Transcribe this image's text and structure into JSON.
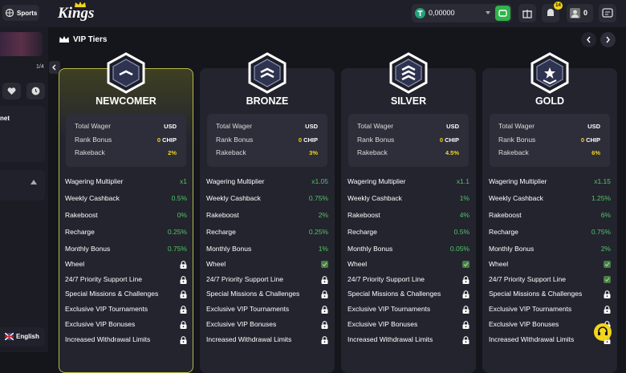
{
  "top_bar": {
    "sports_button": "Sports",
    "logo": "Kings",
    "balance": "0,00000",
    "notification_count": "14",
    "avatar_count": "0"
  },
  "sidebar": {
    "slider_counter": "1/4",
    "section_label": "net",
    "language": "English"
  },
  "section_title": "VIP Tiers",
  "tiers": [
    {
      "name": "NEWCOMER",
      "summary": [
        {
          "label": "Total Wager",
          "value": "USD"
        },
        {
          "label": "Rank Bonus",
          "value": "0",
          "unit": "CHIP"
        },
        {
          "label": "Rakeback",
          "value": "2%"
        }
      ],
      "rows": [
        {
          "label": "Wagering Multiplier",
          "value": "x1"
        },
        {
          "label": "Weekly Cashback",
          "value": "0.5%"
        },
        {
          "label": "Rakeboost",
          "value": "0%"
        },
        {
          "label": "Recharge",
          "value": "0.25%"
        },
        {
          "label": "Monthly Bonus",
          "value": "0.75%"
        }
      ],
      "perks": [
        {
          "label": "Wheel",
          "unlocked": false
        },
        {
          "label": "24/7 Priority Support Line",
          "unlocked": false
        },
        {
          "label": "Special Missions & Challenges",
          "unlocked": false
        },
        {
          "label": "Exclusive VIP Tournaments",
          "unlocked": false
        },
        {
          "label": "Exclusive VIP Bonuses",
          "unlocked": false
        },
        {
          "label": "Increased Withdrawal Limits",
          "unlocked": false
        }
      ]
    },
    {
      "name": "BRONZE",
      "summary": [
        {
          "label": "Total Wager",
          "value": "USD"
        },
        {
          "label": "Rank Bonus",
          "value": "0",
          "unit": "CHIP"
        },
        {
          "label": "Rakeback",
          "value": "3%"
        }
      ],
      "rows": [
        {
          "label": "Wagering Multiplier",
          "value": "x1.05"
        },
        {
          "label": "Weekly Cashback",
          "value": "0.75%"
        },
        {
          "label": "Rakeboost",
          "value": "2%"
        },
        {
          "label": "Recharge",
          "value": "0.25%"
        },
        {
          "label": "Monthly Bonus",
          "value": "1%"
        }
      ],
      "perks": [
        {
          "label": "Wheel",
          "unlocked": true
        },
        {
          "label": "24/7 Priority Support Line",
          "unlocked": false
        },
        {
          "label": "Special Missions & Challenges",
          "unlocked": false
        },
        {
          "label": "Exclusive VIP Tournaments",
          "unlocked": false
        },
        {
          "label": "Exclusive VIP Bonuses",
          "unlocked": false
        },
        {
          "label": "Increased Withdrawal Limits",
          "unlocked": false
        }
      ]
    },
    {
      "name": "SILVER",
      "summary": [
        {
          "label": "Total Wager",
          "value": "USD"
        },
        {
          "label": "Rank Bonus",
          "value": "0",
          "unit": "CHIP"
        },
        {
          "label": "Rakeback",
          "value": "4.5%"
        }
      ],
      "rows": [
        {
          "label": "Wagering Multiplier",
          "value": "x1.1"
        },
        {
          "label": "Weekly Cashback",
          "value": "1%"
        },
        {
          "label": "Rakeboost",
          "value": "4%"
        },
        {
          "label": "Recharge",
          "value": "0.5%"
        },
        {
          "label": "Monthly Bonus",
          "value": "0.05%"
        }
      ],
      "perks": [
        {
          "label": "Wheel",
          "unlocked": true
        },
        {
          "label": "24/7 Priority Support Line",
          "unlocked": false
        },
        {
          "label": "Special Missions & Challenges",
          "unlocked": false
        },
        {
          "label": "Exclusive VIP Tournaments",
          "unlocked": false
        },
        {
          "label": "Exclusive VIP Bonuses",
          "unlocked": false
        },
        {
          "label": "Increased Withdrawal Limits",
          "unlocked": false
        }
      ]
    },
    {
      "name": "GOLD",
      "summary": [
        {
          "label": "Total Wager",
          "value": "USD"
        },
        {
          "label": "Rank Bonus",
          "value": "0",
          "unit": "CHIP"
        },
        {
          "label": "Rakeback",
          "value": "6%"
        }
      ],
      "rows": [
        {
          "label": "Wagering Multiplier",
          "value": "x1.15"
        },
        {
          "label": "Weekly Cashback",
          "value": "1.25%"
        },
        {
          "label": "Rakeboost",
          "value": "6%"
        },
        {
          "label": "Recharge",
          "value": "0.75%"
        },
        {
          "label": "Monthly Bonus",
          "value": "2%"
        }
      ],
      "perks": [
        {
          "label": "Wheel",
          "unlocked": true
        },
        {
          "label": "24/7 Priority Support Line",
          "unlocked": true
        },
        {
          "label": "Special Missions & Challenges",
          "unlocked": false
        },
        {
          "label": "Exclusive VIP Tournaments",
          "unlocked": false
        },
        {
          "label": "Exclusive VIP Bonuses",
          "unlocked": false
        },
        {
          "label": "Increased Withdrawal Limits",
          "unlocked": false
        }
      ]
    }
  ]
}
